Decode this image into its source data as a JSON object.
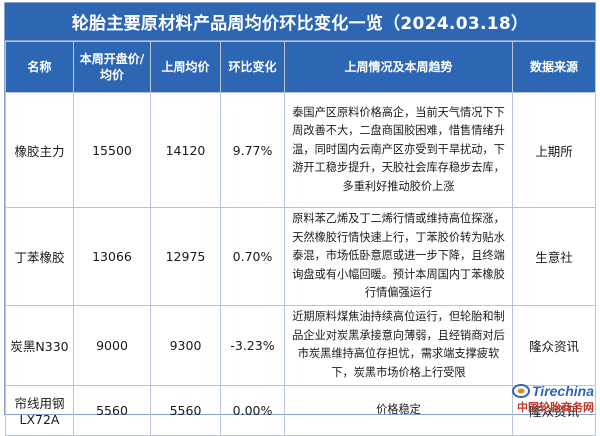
{
  "title": "轮胎主要原材料产品周均价环比变化一览（2024.03.18）",
  "headers": [
    "名称",
    "本周开盘价/均价",
    "上周均价",
    "环比变化",
    "上周情况及本周趋势",
    "数据来源"
  ],
  "rows": [
    {
      "name": "橡胶主力",
      "this_week": "15500",
      "last_week": "14120",
      "change": "9.77%",
      "trend": "泰国产区原料价格高企，当前天气情况下下周改善不大，二盘商国胶困难，惜售情绪升温，同时国内云南产区亦受到干旱扰动，下游开工稳步提升，天胶社会库存稳步去库，多重利好推动胶价上涨",
      "source": "上期所"
    },
    {
      "name": "丁苯橡胶",
      "this_week": "13066",
      "last_week": "12975",
      "change": "0.70%",
      "trend": "原料苯乙烯及丁二烯行情或维持高位探涨，天然橡胶行情快速上行，丁苯胶价转为贴水泰混，市场低卧意愿或进一步下降，且终端询盘或有小幅回暖。预计本周国内丁苯橡胶行情偏强运行",
      "source": "生意社"
    },
    {
      "name": "炭黑N330",
      "this_week": "9000",
      "last_week": "9300",
      "change": "-3.23%",
      "trend": "近期原料煤焦油持续高位运行，但轮胎和制品企业对炭黑承接意向薄弱，且经销商对后市炭黑维持高位存担忧，需求端支撑疲软下，炭黑市场价格上行受限",
      "source": "隆众资讯"
    },
    {
      "name": "帘线用钢LX72A",
      "this_week": "5560",
      "last_week": "5560",
      "change": "0.00%",
      "trend": "价格稳定",
      "source": "隆众资讯"
    }
  ],
  "watermark": {
    "logo": "Tirechina",
    "sub": "中国轮胎商务网"
  },
  "colors": {
    "header_bg": "#2d66b3",
    "header_text": "#ffffff",
    "border": "#b8c4d8"
  }
}
